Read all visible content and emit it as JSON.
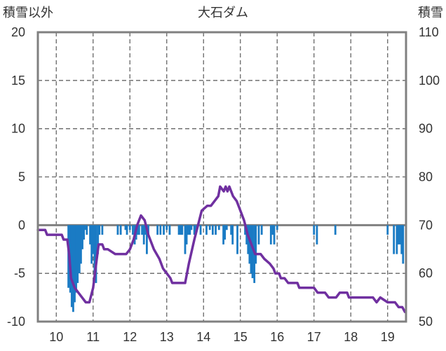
{
  "chart_data": {
    "type": "bar+line",
    "title": "大石ダム",
    "left_axis": {
      "label": "積雪以外",
      "min": -10,
      "max": 20,
      "ticks": [
        -10,
        -5,
        0,
        5,
        10,
        15,
        20
      ]
    },
    "right_axis": {
      "label": "積雪",
      "min": 50,
      "max": 110,
      "ticks": [
        50,
        60,
        70,
        80,
        90,
        100,
        110
      ]
    },
    "x_axis": {
      "min": 9.5,
      "max": 19.5,
      "ticks": [
        10,
        11,
        12,
        13,
        14,
        15,
        16,
        17,
        18,
        19
      ]
    },
    "grid": {
      "vertical": "dashed",
      "horizontal": "dashed"
    },
    "colors": {
      "bars": "#1a7bc4",
      "line": "#7030a0",
      "frame": "#808080",
      "grid": "#666666"
    },
    "bars_series": {
      "axis": "left",
      "points": [
        [
          10.33,
          -6.5
        ],
        [
          10.38,
          -7
        ],
        [
          10.42,
          -8.5
        ],
        [
          10.46,
          -9
        ],
        [
          10.5,
          -8
        ],
        [
          10.54,
          -7
        ],
        [
          10.58,
          -6
        ],
        [
          10.63,
          -5
        ],
        [
          10.67,
          -4
        ],
        [
          10.71,
          -2.5
        ],
        [
          10.75,
          -1.5
        ],
        [
          10.79,
          -0.5
        ],
        [
          10.83,
          -1
        ],
        [
          10.92,
          -2
        ],
        [
          10.96,
          -4
        ],
        [
          11.0,
          -3
        ],
        [
          11.04,
          -5
        ],
        [
          11.08,
          -6
        ],
        [
          11.13,
          -3
        ],
        [
          11.17,
          -1
        ],
        [
          11.25,
          -1
        ],
        [
          11.67,
          -1
        ],
        [
          11.75,
          -1
        ],
        [
          11.88,
          -0.5
        ],
        [
          11.92,
          -1
        ],
        [
          12.0,
          -0.5
        ],
        [
          12.08,
          -1
        ],
        [
          12.13,
          -2
        ],
        [
          12.17,
          -1.5
        ],
        [
          12.21,
          -1
        ],
        [
          12.25,
          -1
        ],
        [
          12.33,
          -1
        ],
        [
          12.38,
          -2
        ],
        [
          12.42,
          -1
        ],
        [
          12.46,
          -3
        ],
        [
          12.5,
          -1
        ],
        [
          12.75,
          -1
        ],
        [
          12.83,
          -1
        ],
        [
          12.92,
          -1
        ],
        [
          13.0,
          -0.5
        ],
        [
          13.08,
          -1
        ],
        [
          13.33,
          -1
        ],
        [
          13.38,
          -1
        ],
        [
          13.42,
          -1
        ],
        [
          13.5,
          -3
        ],
        [
          13.54,
          -2
        ],
        [
          13.58,
          -1
        ],
        [
          13.63,
          -1
        ],
        [
          13.67,
          -0.5
        ],
        [
          13.75,
          -1
        ],
        [
          13.79,
          -1
        ],
        [
          13.92,
          -1
        ],
        [
          14.08,
          -1
        ],
        [
          14.17,
          -0.5
        ],
        [
          14.25,
          -1
        ],
        [
          14.33,
          -1
        ],
        [
          14.42,
          -0.5
        ],
        [
          14.54,
          -2
        ],
        [
          14.58,
          -1.5
        ],
        [
          14.63,
          -0.5
        ],
        [
          14.75,
          -1
        ],
        [
          14.79,
          -2
        ],
        [
          14.92,
          -3
        ],
        [
          15.13,
          -1
        ],
        [
          15.17,
          -2
        ],
        [
          15.21,
          -3
        ],
        [
          15.25,
          -4
        ],
        [
          15.29,
          -5
        ],
        [
          15.33,
          -5.5
        ],
        [
          15.38,
          -6
        ],
        [
          15.42,
          -4
        ],
        [
          15.5,
          -2
        ],
        [
          15.58,
          -1
        ],
        [
          15.83,
          -2
        ],
        [
          15.88,
          -1
        ],
        [
          15.92,
          -2
        ],
        [
          16.0,
          -0.5
        ],
        [
          17.0,
          -1
        ],
        [
          17.08,
          -2
        ],
        [
          17.58,
          -1
        ],
        [
          19.0,
          -1
        ],
        [
          19.17,
          -3
        ],
        [
          19.25,
          -3
        ],
        [
          19.29,
          -2
        ],
        [
          19.33,
          -2
        ],
        [
          19.38,
          -3
        ],
        [
          19.42,
          -4
        ]
      ]
    },
    "line_series": {
      "axis": "right",
      "points": [
        [
          9.5,
          69
        ],
        [
          9.7,
          69
        ],
        [
          9.75,
          68
        ],
        [
          10.15,
          68
        ],
        [
          10.2,
          67
        ],
        [
          10.3,
          67
        ],
        [
          10.35,
          64
        ],
        [
          10.4,
          59
        ],
        [
          10.5,
          57
        ],
        [
          10.7,
          55
        ],
        [
          10.8,
          54
        ],
        [
          10.9,
          54
        ],
        [
          11.0,
          57
        ],
        [
          11.1,
          63
        ],
        [
          11.15,
          66
        ],
        [
          11.25,
          66
        ],
        [
          11.3,
          65
        ],
        [
          11.4,
          65
        ],
        [
          11.6,
          64
        ],
        [
          11.9,
          64
        ],
        [
          12.0,
          65
        ],
        [
          12.1,
          67
        ],
        [
          12.2,
          70
        ],
        [
          12.3,
          72
        ],
        [
          12.4,
          71
        ],
        [
          12.5,
          68
        ],
        [
          12.65,
          65
        ],
        [
          12.8,
          63
        ],
        [
          12.9,
          61
        ],
        [
          13.0,
          60
        ],
        [
          13.1,
          59
        ],
        [
          13.15,
          58
        ],
        [
          13.5,
          58
        ],
        [
          13.6,
          62
        ],
        [
          13.75,
          67
        ],
        [
          13.85,
          70
        ],
        [
          13.95,
          73
        ],
        [
          14.1,
          74
        ],
        [
          14.2,
          74
        ],
        [
          14.3,
          75
        ],
        [
          14.4,
          76
        ],
        [
          14.45,
          78
        ],
        [
          14.55,
          77
        ],
        [
          14.6,
          78
        ],
        [
          14.65,
          77
        ],
        [
          14.7,
          78
        ],
        [
          14.8,
          76
        ],
        [
          14.9,
          75
        ],
        [
          15.0,
          73
        ],
        [
          15.1,
          71
        ],
        [
          15.2,
          68
        ],
        [
          15.3,
          66
        ],
        [
          15.4,
          64
        ],
        [
          15.55,
          64
        ],
        [
          15.65,
          63
        ],
        [
          15.8,
          62
        ],
        [
          15.9,
          61
        ],
        [
          15.95,
          60
        ],
        [
          16.05,
          60
        ],
        [
          16.1,
          59
        ],
        [
          16.2,
          59
        ],
        [
          16.3,
          58
        ],
        [
          16.55,
          58
        ],
        [
          16.6,
          57
        ],
        [
          17.0,
          57
        ],
        [
          17.1,
          56
        ],
        [
          17.3,
          56
        ],
        [
          17.4,
          55
        ],
        [
          17.5,
          55
        ],
        [
          17.6,
          55
        ],
        [
          17.7,
          56
        ],
        [
          17.9,
          56
        ],
        [
          17.95,
          55
        ],
        [
          18.6,
          55
        ],
        [
          18.7,
          54
        ],
        [
          18.8,
          55
        ],
        [
          19.0,
          54
        ],
        [
          19.2,
          54
        ],
        [
          19.3,
          53
        ],
        [
          19.4,
          53
        ],
        [
          19.47,
          52
        ]
      ]
    }
  }
}
